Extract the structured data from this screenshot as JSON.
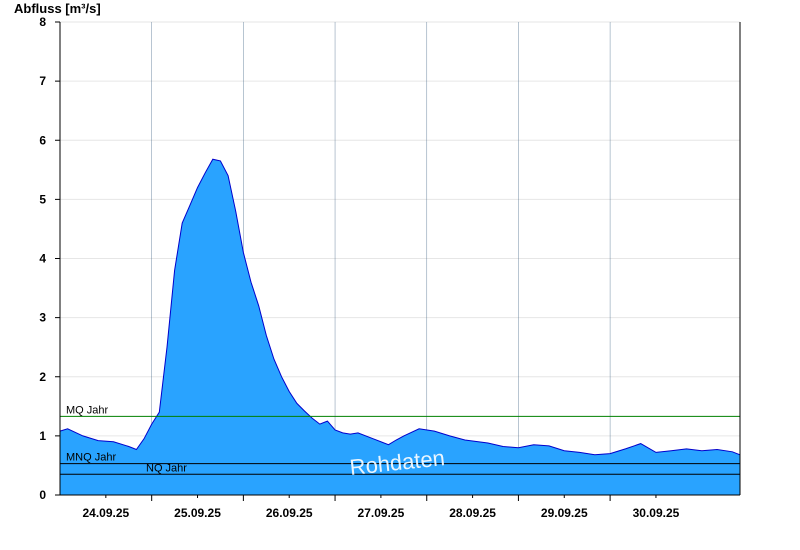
{
  "chart_data": {
    "type": "area",
    "ylabel": "Abfluss [m³/s]",
    "ylim": [
      0,
      8
    ],
    "yticks": [
      "0",
      "1",
      "2",
      "3",
      "4",
      "5",
      "6",
      "7",
      "8"
    ],
    "xlim": [
      "2025-09-23T12:00",
      "2025-09-30T22:00"
    ],
    "xticks": [
      {
        "label": "24.09.25",
        "at": "2025-09-24T00:00"
      },
      {
        "label": "25.09.25",
        "at": "2025-09-25T00:00"
      },
      {
        "label": "26.09.25",
        "at": "2025-09-26T00:00"
      },
      {
        "label": "27.09.25",
        "at": "2025-09-27T00:00"
      },
      {
        "label": "28.09.25",
        "at": "2025-09-28T00:00"
      },
      {
        "label": "29.09.25",
        "at": "2025-09-29T00:00"
      },
      {
        "label": "30.09.25",
        "at": "2025-09-30T00:00"
      }
    ],
    "day_gridlines": [
      "2025-09-24T12:00",
      "2025-09-25T12:00",
      "2025-09-26T12:00",
      "2025-09-27T12:00",
      "2025-09-28T12:00",
      "2025-09-29T12:00"
    ],
    "grid": true,
    "series": [
      {
        "fill": "#29a3ff",
        "line": "#0000cc",
        "x": [
          "2025-09-23T12:00",
          "2025-09-23T14:00",
          "2025-09-23T18:00",
          "2025-09-23T22:00",
          "2025-09-24T02:00",
          "2025-09-24T06:00",
          "2025-09-24T08:00",
          "2025-09-24T10:00",
          "2025-09-24T12:00",
          "2025-09-24T14:00",
          "2025-09-24T16:00",
          "2025-09-24T18:00",
          "2025-09-24T20:00",
          "2025-09-24T22:00",
          "2025-09-25T00:00",
          "2025-09-25T02:00",
          "2025-09-25T04:00",
          "2025-09-25T06:00",
          "2025-09-25T08:00",
          "2025-09-25T10:00",
          "2025-09-25T12:00",
          "2025-09-25T14:00",
          "2025-09-25T16:00",
          "2025-09-25T18:00",
          "2025-09-25T20:00",
          "2025-09-25T22:00",
          "2025-09-26T00:00",
          "2025-09-26T02:00",
          "2025-09-26T04:00",
          "2025-09-26T06:00",
          "2025-09-26T08:00",
          "2025-09-26T10:00",
          "2025-09-26T12:00",
          "2025-09-26T14:00",
          "2025-09-26T16:00",
          "2025-09-26T18:00",
          "2025-09-26T22:00",
          "2025-09-27T02:00",
          "2025-09-27T04:00",
          "2025-09-27T06:00",
          "2025-09-27T10:00",
          "2025-09-27T14:00",
          "2025-09-27T18:00",
          "2025-09-27T22:00",
          "2025-09-28T04:00",
          "2025-09-28T08:00",
          "2025-09-28T12:00",
          "2025-09-28T16:00",
          "2025-09-28T20:00",
          "2025-09-29T00:00",
          "2025-09-29T04:00",
          "2025-09-29T08:00",
          "2025-09-29T12:00",
          "2025-09-29T16:00",
          "2025-09-29T20:00",
          "2025-09-30T00:00",
          "2025-09-30T04:00",
          "2025-09-30T08:00",
          "2025-09-30T12:00",
          "2025-09-30T16:00",
          "2025-09-30T20:00",
          "2025-09-30T22:00"
        ],
        "y": [
          1.08,
          1.12,
          1.0,
          0.92,
          0.9,
          0.82,
          0.77,
          0.95,
          1.2,
          1.4,
          2.5,
          3.8,
          4.6,
          4.9,
          5.2,
          5.45,
          5.68,
          5.65,
          5.4,
          4.8,
          4.1,
          3.6,
          3.2,
          2.7,
          2.3,
          2.0,
          1.75,
          1.55,
          1.42,
          1.3,
          1.2,
          1.25,
          1.1,
          1.05,
          1.03,
          1.05,
          0.95,
          0.85,
          0.93,
          1.0,
          1.12,
          1.08,
          1.0,
          0.93,
          0.88,
          0.82,
          0.8,
          0.85,
          0.83,
          0.75,
          0.72,
          0.68,
          0.7,
          0.78,
          0.87,
          0.72,
          0.75,
          0.78,
          0.75,
          0.77,
          0.73,
          0.68
        ]
      }
    ],
    "reference_lines": [
      {
        "label": "MQ Jahr",
        "value": 1.33,
        "color": "#008000"
      },
      {
        "label": "MNQ Jahr",
        "value": 0.53,
        "color": "#000000"
      },
      {
        "label": "NQ Jahr",
        "value": 0.35,
        "color": "#000000"
      }
    ],
    "watermark": "Rohdaten"
  }
}
